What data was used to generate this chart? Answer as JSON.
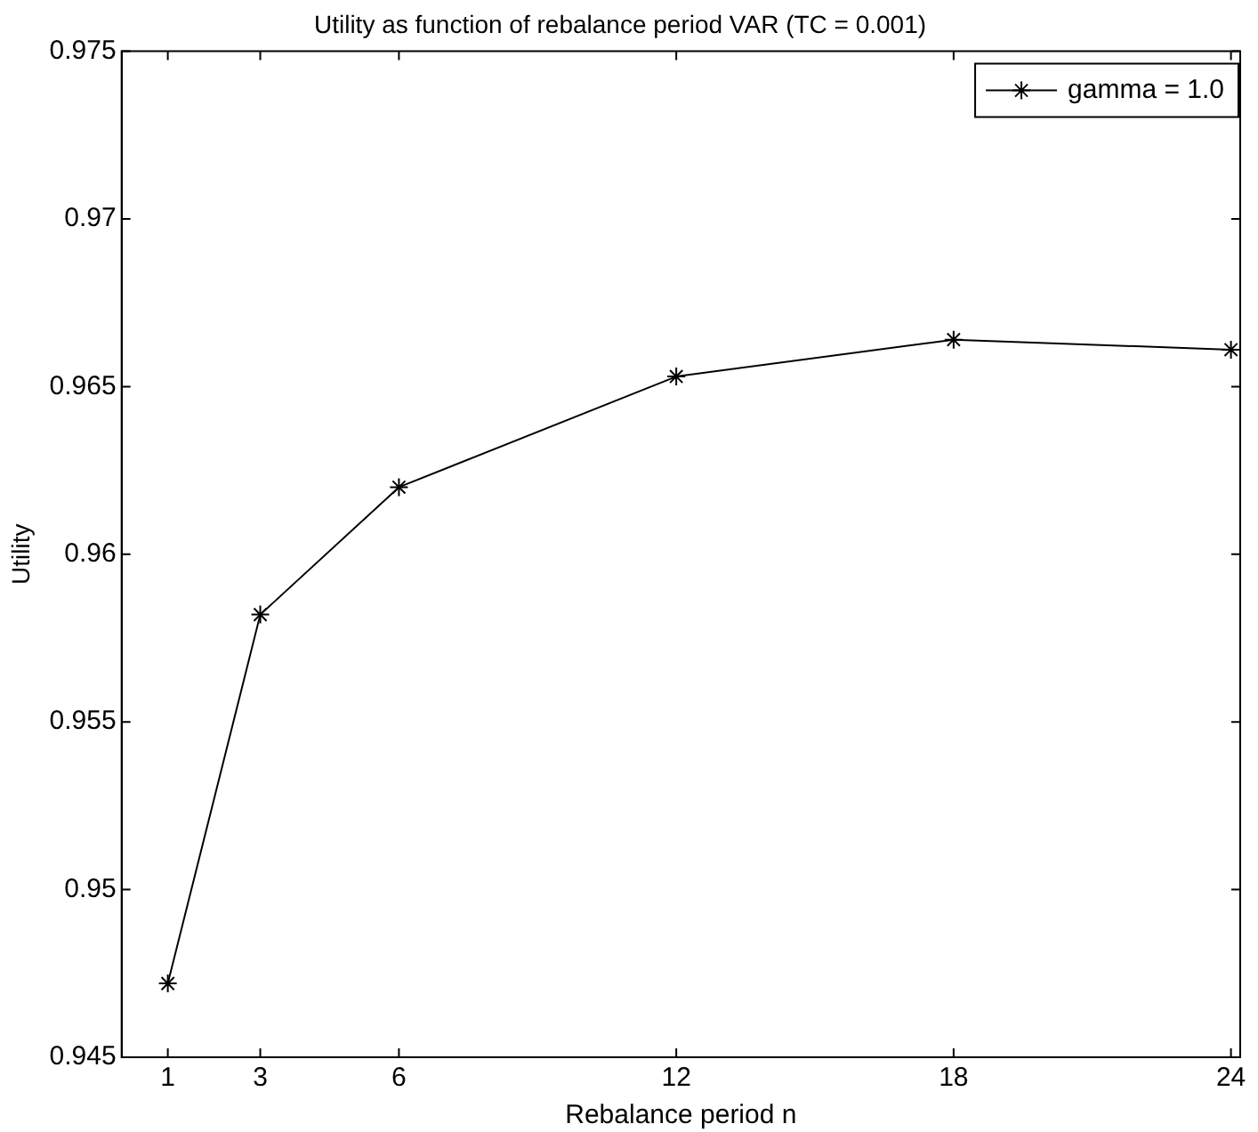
{
  "chart_data": {
    "type": "line",
    "title": "Utility as function of rebalance period VAR (TC = 0.001)",
    "xlabel": "Rebalance period n",
    "ylabel": "Utility",
    "x": [
      1,
      3,
      6,
      12,
      18,
      24
    ],
    "series": [
      {
        "name": "gamma = 1.0",
        "color": "#000000",
        "values": [
          0.9472,
          0.9582,
          0.962,
          0.9653,
          0.9664,
          0.9661
        ]
      }
    ],
    "xlim": [
      0,
      24.2
    ],
    "xticks": [
      1,
      3,
      6,
      12,
      18,
      24
    ],
    "ylim": [
      0.945,
      0.975
    ],
    "yticks": [
      0.945,
      0.95,
      0.955,
      0.96,
      0.965,
      0.97,
      0.975
    ],
    "grid": false,
    "legend": "top right",
    "marker": "cross",
    "line_style": "solid"
  }
}
